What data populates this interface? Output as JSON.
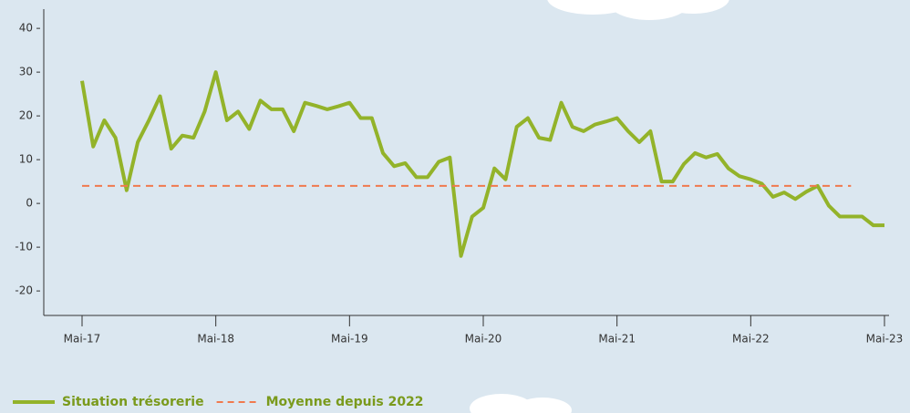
{
  "chart_data": {
    "type": "line",
    "categories": [
      "Mai-17",
      null,
      null,
      null,
      null,
      null,
      null,
      null,
      null,
      null,
      null,
      null,
      "Mai-18",
      null,
      null,
      null,
      null,
      null,
      null,
      null,
      null,
      null,
      null,
      null,
      "Mai-19",
      null,
      null,
      null,
      null,
      null,
      null,
      null,
      null,
      null,
      null,
      null,
      "Mai-20",
      null,
      null,
      null,
      null,
      null,
      null,
      null,
      null,
      null,
      null,
      null,
      "Mai-21",
      null,
      null,
      null,
      null,
      null,
      null,
      null,
      null,
      null,
      null,
      null,
      "Mai-22",
      null,
      null,
      null,
      null,
      null,
      null,
      null,
      null,
      null,
      null,
      null,
      "Mai-23"
    ],
    "series": [
      {
        "name": "Situation trésorerie",
        "color": "#93b32a",
        "style": "solid",
        "values": [
          28,
          13,
          19,
          15,
          3,
          14,
          19,
          24.5,
          12.5,
          15.5,
          15,
          21,
          30,
          19,
          21,
          17,
          23.5,
          21.5,
          21.5,
          16.5,
          23,
          22.3,
          21.5,
          22.2,
          23,
          19.5,
          19.5,
          11.5,
          8.5,
          9.2,
          6,
          6,
          9.5,
          10.5,
          -12,
          -3,
          -1,
          8,
          5.5,
          17.5,
          19.5,
          15,
          14.5,
          23,
          17.5,
          16.5,
          18,
          18.7,
          19.5,
          16.5,
          14,
          16.5,
          5,
          5,
          9,
          11.5,
          10.5,
          11.3,
          8,
          6.2,
          5.5,
          4.5,
          1.5,
          2.5,
          1,
          2.7,
          4,
          -0.5,
          -3,
          -3,
          -3,
          -5,
          -5
        ]
      },
      {
        "name": "Moyenne depuis 2022",
        "color": "#f07a4e",
        "style": "dashed",
        "values": [
          4,
          4,
          4,
          4,
          4,
          4,
          4,
          4,
          4,
          4,
          4,
          4,
          4,
          4,
          4,
          4,
          4,
          4,
          4,
          4,
          4,
          4,
          4,
          4,
          4,
          4,
          4,
          4,
          4,
          4,
          4,
          4,
          4,
          4,
          4,
          4,
          4,
          4,
          4,
          4,
          4,
          4,
          4,
          4,
          4,
          4,
          4,
          4,
          4,
          4,
          4,
          4,
          4,
          4,
          4,
          4,
          4,
          4,
          4,
          4,
          4,
          4,
          4,
          4,
          4,
          4,
          4,
          4,
          4,
          4,
          null,
          null,
          null
        ]
      }
    ],
    "ylim": [
      -25.6,
      44.4
    ],
    "yticks": [
      -20,
      -10,
      0,
      10,
      20,
      30,
      40
    ]
  }
}
